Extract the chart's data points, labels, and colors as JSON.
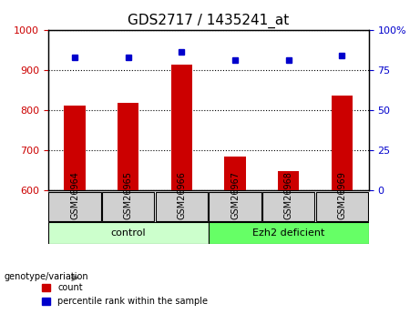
{
  "title": "GDS2717 / 1435241_at",
  "samples": [
    "GSM26964",
    "GSM26965",
    "GSM26966",
    "GSM26967",
    "GSM26968",
    "GSM26969"
  ],
  "counts": [
    810,
    818,
    912,
    685,
    648,
    835
  ],
  "percentile_ranks": [
    83,
    83,
    86,
    81,
    81,
    84
  ],
  "ylim_left": [
    600,
    1000
  ],
  "ylim_right": [
    0,
    100
  ],
  "yticks_left": [
    600,
    700,
    800,
    900,
    1000
  ],
  "yticks_right": [
    0,
    25,
    50,
    75,
    100
  ],
  "bar_color": "#cc0000",
  "dot_color": "#0000cc",
  "groups": [
    {
      "label": "control",
      "samples": [
        "GSM26964",
        "GSM26965",
        "GSM26966"
      ],
      "color": "#ccffcc"
    },
    {
      "label": "Ezh2 deficient",
      "samples": [
        "GSM26967",
        "GSM26968",
        "GSM26969"
      ],
      "color": "#66ff66"
    }
  ],
  "genotype_label": "genotype/variation",
  "legend_count": "count",
  "legend_percentile": "percentile rank within the sample",
  "grid_color": "black",
  "grid_style": "dotted",
  "tick_label_color_left": "#cc0000",
  "tick_label_color_right": "#0000cc",
  "bar_width": 0.4,
  "base_value": 600
}
